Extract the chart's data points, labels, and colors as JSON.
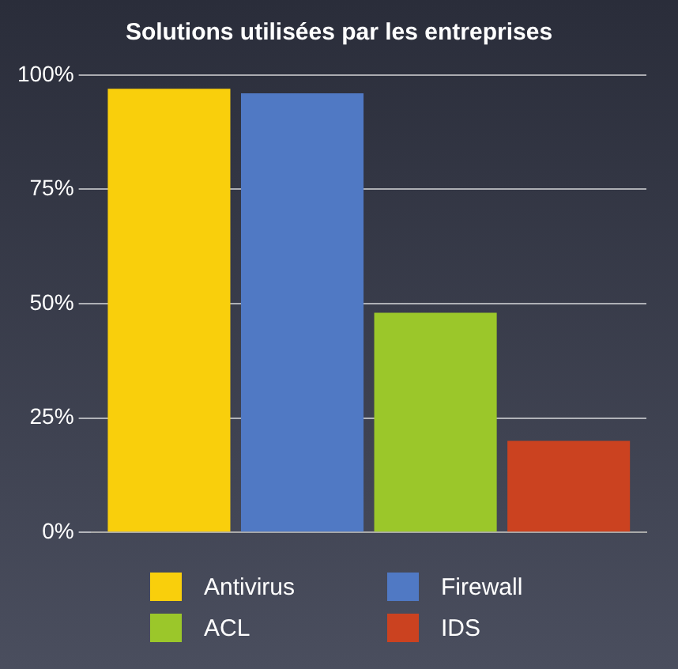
{
  "chart_data": {
    "type": "bar",
    "title": "Solutions utilisées par les entreprises",
    "categories": [
      null
    ],
    "series": [
      {
        "name": "Antivirus",
        "color": "#f9cf0c",
        "values": [
          97
        ]
      },
      {
        "name": "Firewall",
        "color": "#5079c4",
        "values": [
          96
        ]
      },
      {
        "name": "ACL",
        "color": "#9bc72a",
        "values": [
          48
        ]
      },
      {
        "name": "IDS",
        "color": "#cb4220",
        "values": [
          20
        ]
      }
    ],
    "ylim": [
      0,
      100
    ],
    "yticks": [
      {
        "value": 0,
        "label": "0%"
      },
      {
        "value": 25,
        "label": "25%"
      },
      {
        "value": 50,
        "label": "50%"
      },
      {
        "value": 75,
        "label": "75%"
      },
      {
        "value": 100,
        "label": "100%"
      }
    ],
    "grid": "y",
    "legend": "bottom"
  }
}
